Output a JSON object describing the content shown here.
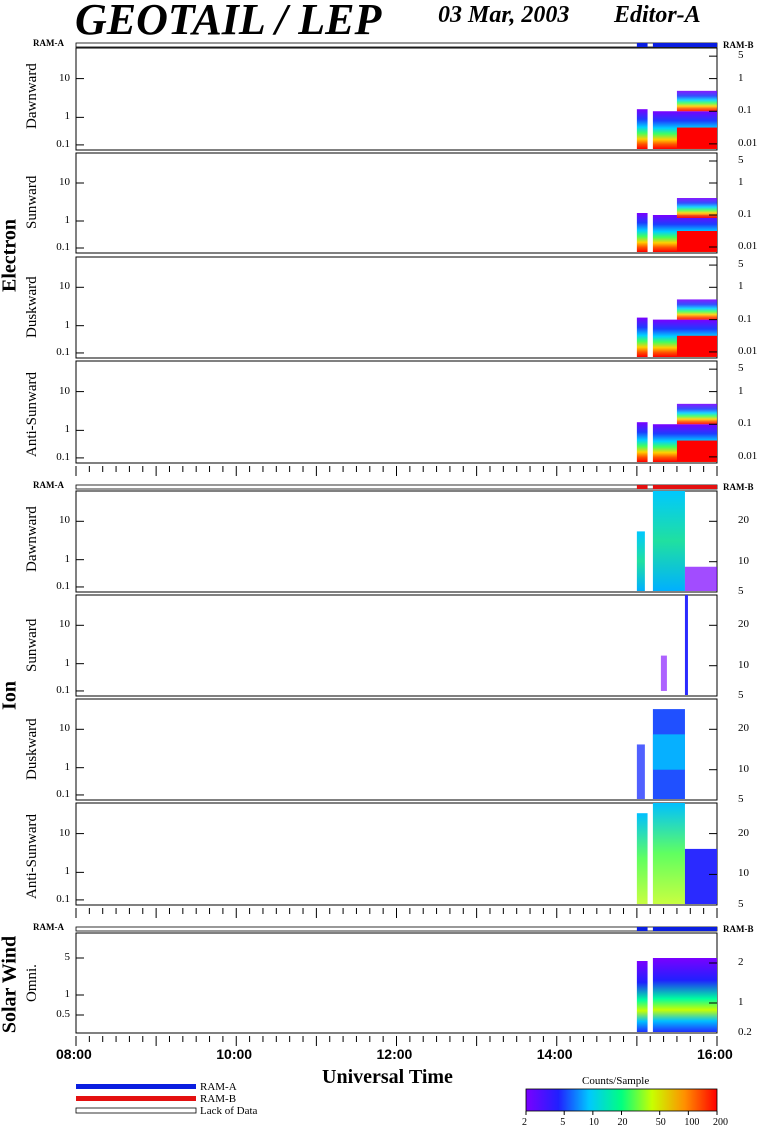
{
  "header": {
    "title": "GEOTAIL / LEP",
    "date": "03 Mar, 2003",
    "editor": "Editor-A"
  },
  "groups": {
    "electron": "Electron",
    "ion": "Ion",
    "solar_wind": "Solar Wind"
  },
  "ram": {
    "a": "RAM-A",
    "b": "RAM-B"
  },
  "xaxis": {
    "label": "Universal Time",
    "ticks": [
      "08:00",
      "10:00",
      "12:00",
      "14:00",
      "16:00"
    ]
  },
  "legend": {
    "ram_a": "RAM-A",
    "ram_b": "RAM-B",
    "lack": "Lack of Data",
    "colors": {
      "ram_a": "#0a1ee0",
      "ram_b": "#e41010"
    }
  },
  "colorbar": {
    "title": "Counts/Sample",
    "ticks": [
      "2",
      "5",
      "10",
      "20",
      "50",
      "100",
      "200"
    ]
  },
  "chart_data": {
    "type": "heatmap",
    "title": "GEOTAIL / LEP",
    "xlabel": "Universal Time",
    "xlim": [
      "08:00",
      "16:00"
    ],
    "data_start": "15:00",
    "data_gap": [
      "15:08",
      "15:12"
    ],
    "colorbar": {
      "label": "Counts/Sample",
      "range": [
        2,
        200
      ],
      "scale": "log"
    },
    "panels": [
      {
        "group": "Electron",
        "name": "Dawnward",
        "left_ticks": [
          "10",
          "1",
          "0.1"
        ],
        "right_ticks": [
          "5",
          "1",
          "0.1",
          "0.01"
        ],
        "ram_bar": "RAM-A"
      },
      {
        "group": "Electron",
        "name": "Sunward",
        "left_ticks": [
          "10",
          "1",
          "0.1"
        ],
        "right_ticks": [
          "5",
          "1",
          "0.1",
          "0.01"
        ]
      },
      {
        "group": "Electron",
        "name": "Duskward",
        "left_ticks": [
          "10",
          "1",
          "0.1"
        ],
        "right_ticks": [
          "5",
          "1",
          "0.1",
          "0.01"
        ]
      },
      {
        "group": "Electron",
        "name": "Anti-Sunward",
        "left_ticks": [
          "10",
          "1",
          "0.1"
        ],
        "right_ticks": [
          "5",
          "1",
          "0.1",
          "0.01"
        ]
      },
      {
        "group": "Ion",
        "name": "Dawnward",
        "left_ticks": [
          "10",
          "1",
          "0.1"
        ],
        "right_ticks": [
          "20",
          "10",
          "5"
        ],
        "ram_bar": "RAM-B"
      },
      {
        "group": "Ion",
        "name": "Sunward",
        "left_ticks": [
          "10",
          "1",
          "0.1"
        ],
        "right_ticks": [
          "20",
          "10",
          "5"
        ]
      },
      {
        "group": "Ion",
        "name": "Duskward",
        "left_ticks": [
          "10",
          "1",
          "0.1"
        ],
        "right_ticks": [
          "20",
          "10",
          "5"
        ]
      },
      {
        "group": "Ion",
        "name": "Anti-Sunward",
        "left_ticks": [
          "10",
          "1",
          "0.1"
        ],
        "right_ticks": [
          "20",
          "10",
          "5"
        ]
      },
      {
        "group": "Solar Wind",
        "name": "Omni.",
        "left_ticks": [
          "5",
          "1",
          "0.5"
        ],
        "right_ticks": [
          "2",
          "1",
          "0.2"
        ],
        "ram_bar": "RAM-A"
      }
    ]
  }
}
